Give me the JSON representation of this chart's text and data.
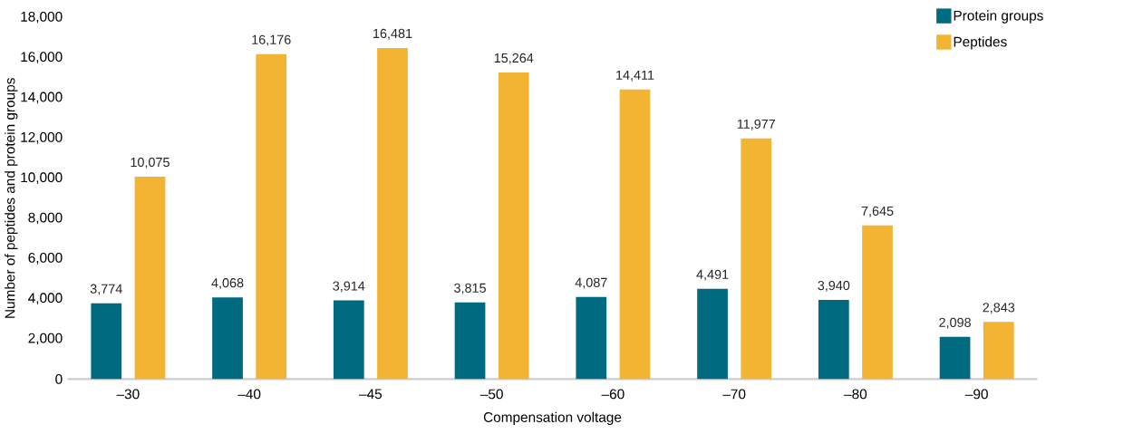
{
  "chart_data": {
    "type": "bar",
    "xlabel": "Compensation voltage",
    "ylabel": "Number of peptides and protein groups",
    "categories": [
      "–30",
      "–40",
      "–45",
      "–50",
      "–60",
      "–70",
      "–80",
      "–90"
    ],
    "series": [
      {
        "name": "Protein groups",
        "color": "#006a80",
        "values": [
          3774,
          4068,
          3914,
          3815,
          4087,
          4491,
          3940,
          2098
        ],
        "value_labels": [
          "3,774",
          "4,068",
          "3,914",
          "3,815",
          "4,087",
          "4,491",
          "3,940",
          "2,098"
        ]
      },
      {
        "name": "Peptides",
        "color": "#f3b433",
        "values": [
          10075,
          16176,
          16481,
          15264,
          14411,
          11977,
          7645,
          2843
        ],
        "value_labels": [
          "10,075",
          "16,176",
          "16,481",
          "15,264",
          "14,411",
          "11,977",
          "7,645",
          "2,843"
        ]
      }
    ],
    "ylim": [
      0,
      18000
    ],
    "yticks": [
      0,
      {
        "value": 2000,
        "label": "2,000"
      },
      {
        "value": 4000,
        "label": "4,000"
      },
      {
        "value": 6000,
        "label": "6,000"
      },
      {
        "value": 8000,
        "label": "8,000"
      },
      {
        "value": 10000,
        "label": "10,000"
      },
      {
        "value": 12000,
        "label": "12,000"
      },
      {
        "value": 14000,
        "label": "14,000"
      },
      {
        "value": 16000,
        "label": "16,000"
      },
      {
        "value": 18000,
        "label": "18,000"
      }
    ],
    "legend": "top right"
  }
}
